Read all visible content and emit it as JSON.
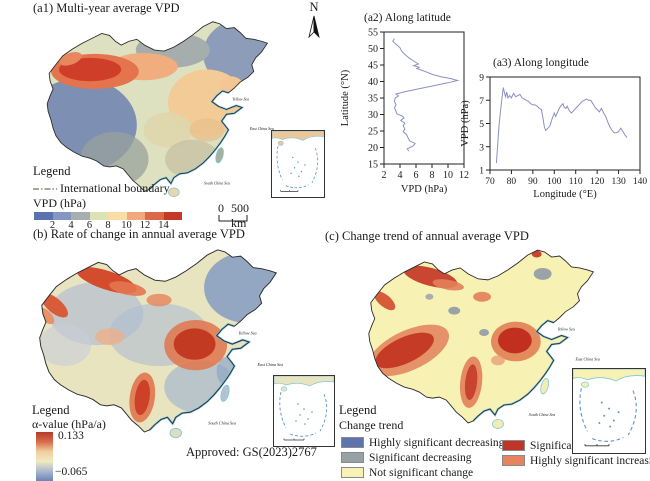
{
  "figure": {
    "a1": {
      "title": "(a1) Multi-year average VPD",
      "north_label": "N",
      "scalebar_zero": "0",
      "scalebar_label": "500 km",
      "legend_title": "Legend",
      "boundary_label": "International boundary",
      "colorbar_title": "VPD (hPa)",
      "colorbar_ticks": [
        "2",
        "4",
        "6",
        "8",
        "10",
        "12",
        "14"
      ],
      "colorbar_colors": [
        "#5a72ae",
        "#8496c2",
        "#a6aeb2",
        "#dbe2b4",
        "#f9dda4",
        "#f2a87e",
        "#dd6847",
        "#c53929"
      ]
    },
    "b": {
      "title": "(b) Rate of change in annual average VPD",
      "legend_title": "Legend",
      "value_label": "α-value (hPa/a)",
      "max_label": "0.133",
      "min_label": "−0.065",
      "gradient_colors": [
        "#b43a2b",
        "#d96b4a",
        "#f0cfa0",
        "#efeabf",
        "#a9b9d0",
        "#6c84b2"
      ],
      "approved_note": "Approved: GS(2023)2767"
    },
    "c": {
      "title": "(c) Change trend of annual average VPD",
      "legend_title": "Legend",
      "legend_subtitle": "Change trend",
      "items_left": [
        {
          "label": "Highly significant decreasing",
          "color": "#5d74ac"
        },
        {
          "label": "Significant decreasing",
          "color": "#98a1a6"
        },
        {
          "label": "Not significant change",
          "color": "#f7f2b4"
        }
      ],
      "items_right": [
        {
          "label": "Significant increasing",
          "color": "#bf3527"
        },
        {
          "label": "Highly significant increasing",
          "color": "#e8825f"
        }
      ]
    },
    "sea_labels": [
      "Yellow Sea",
      "East China Sea",
      "South China Sea"
    ]
  },
  "chart_data": [
    {
      "id": "a2",
      "type": "line",
      "title": "(a2) Along latitude",
      "xlabel": "VPD (hPa)",
      "ylabel": "Latitude (°N)",
      "xlim": [
        2,
        12
      ],
      "ylim": [
        15,
        55
      ],
      "xticks": [
        2,
        4,
        6,
        8,
        10,
        12
      ],
      "yticks": [
        15,
        20,
        25,
        30,
        35,
        40,
        45,
        50,
        55
      ],
      "grid": false,
      "line_color": "#8b90c4",
      "points": [
        [
          3.3,
          53
        ],
        [
          3.1,
          52.2
        ],
        [
          3.5,
          51.3
        ],
        [
          4.0,
          50.2
        ],
        [
          4.2,
          49.2
        ],
        [
          4.6,
          48.2
        ],
        [
          5.1,
          47.2
        ],
        [
          5.7,
          46.2
        ],
        [
          6.3,
          45.3
        ],
        [
          5.7,
          44.8
        ],
        [
          6.4,
          44.3
        ],
        [
          6.1,
          43.9
        ],
        [
          7.1,
          43.1
        ],
        [
          8.1,
          42.1
        ],
        [
          9.2,
          41.4
        ],
        [
          10.3,
          40.9
        ],
        [
          11.2,
          40.3
        ],
        [
          10.0,
          39.6
        ],
        [
          8.2,
          38.7
        ],
        [
          6.0,
          37.6
        ],
        [
          4.4,
          36.8
        ],
        [
          3.5,
          36.2
        ],
        [
          3.8,
          35.6
        ],
        [
          3.4,
          35.0
        ],
        [
          3.3,
          34.0
        ],
        [
          3.5,
          33.0
        ],
        [
          3.3,
          32.0
        ],
        [
          3.5,
          31.0
        ],
        [
          3.6,
          30.2
        ],
        [
          4.3,
          29.5
        ],
        [
          4.5,
          29.0
        ],
        [
          4.1,
          28.2
        ],
        [
          4.6,
          27.4
        ],
        [
          4.4,
          26.6
        ],
        [
          4.6,
          25.6
        ],
        [
          4.4,
          24.8
        ],
        [
          4.8,
          24.0
        ],
        [
          5.0,
          23.0
        ],
        [
          5.2,
          22.0
        ],
        [
          5.9,
          21.2
        ],
        [
          5.6,
          20.4
        ],
        [
          4.9,
          19.6
        ],
        [
          5.1,
          18.9
        ]
      ]
    },
    {
      "id": "a3",
      "type": "line",
      "title": "(a3) Along longitude",
      "xlabel": "Longitude (°E)",
      "ylabel": "VPD (hPa)",
      "xlim": [
        70,
        140
      ],
      "ylim": [
        1,
        9
      ],
      "xticks": [
        70,
        80,
        90,
        100,
        110,
        120,
        130,
        140
      ],
      "yticks": [
        1,
        3,
        5,
        7,
        9
      ],
      "grid": false,
      "line_color": "#8b90c4",
      "points": [
        [
          73,
          1.6
        ],
        [
          73.6,
          3.2
        ],
        [
          74.2,
          4.8
        ],
        [
          75,
          6.2
        ],
        [
          75.6,
          7.2
        ],
        [
          76.2,
          8.1
        ],
        [
          76.8,
          7.6
        ],
        [
          77.3,
          7.3
        ],
        [
          77.8,
          7.7
        ],
        [
          78.4,
          7.2
        ],
        [
          79.2,
          7.4
        ],
        [
          80,
          7.2
        ],
        [
          81,
          7.6
        ],
        [
          82,
          7.3
        ],
        [
          83,
          7.4
        ],
        [
          84,
          7.5
        ],
        [
          85,
          7.2
        ],
        [
          86,
          7.1
        ],
        [
          87,
          7.0
        ],
        [
          88,
          6.9
        ],
        [
          89,
          6.7
        ],
        [
          90,
          6.6
        ],
        [
          91,
          6.6
        ],
        [
          92,
          6.5
        ],
        [
          93,
          6.3
        ],
        [
          94,
          6.2
        ],
        [
          94.6,
          5.6
        ],
        [
          95.4,
          4.7
        ],
        [
          96,
          4.4
        ],
        [
          97,
          4.6
        ],
        [
          98,
          4.8
        ],
        [
          99,
          5.4
        ],
        [
          100,
          5.9
        ],
        [
          100.6,
          5.6
        ],
        [
          101.4,
          5.9
        ],
        [
          102,
          6.2
        ],
        [
          103,
          6.5
        ],
        [
          104,
          6.7
        ],
        [
          104.6,
          6.4
        ],
        [
          105.4,
          6.3
        ],
        [
          106,
          6.5
        ],
        [
          107,
          6.1
        ],
        [
          108,
          5.9
        ],
        [
          109,
          6.1
        ],
        [
          110,
          6.3
        ],
        [
          111,
          6.5
        ],
        [
          112,
          6.7
        ],
        [
          113,
          6.9
        ],
        [
          114,
          7.0
        ],
        [
          115,
          7.1
        ],
        [
          116,
          7.0
        ],
        [
          117,
          7.0
        ],
        [
          118,
          6.7
        ],
        [
          119,
          6.4
        ],
        [
          120,
          6.2
        ],
        [
          121,
          6.0
        ],
        [
          122,
          6.3
        ],
        [
          123,
          5.9
        ],
        [
          124,
          5.6
        ],
        [
          125,
          5.1
        ],
        [
          126,
          4.7
        ],
        [
          127,
          4.4
        ],
        [
          128,
          4.2
        ],
        [
          129,
          4.2
        ],
        [
          130,
          4.3
        ],
        [
          131,
          4.6
        ],
        [
          132,
          4.3
        ],
        [
          133,
          4.0
        ],
        [
          134,
          3.8
        ]
      ]
    }
  ]
}
